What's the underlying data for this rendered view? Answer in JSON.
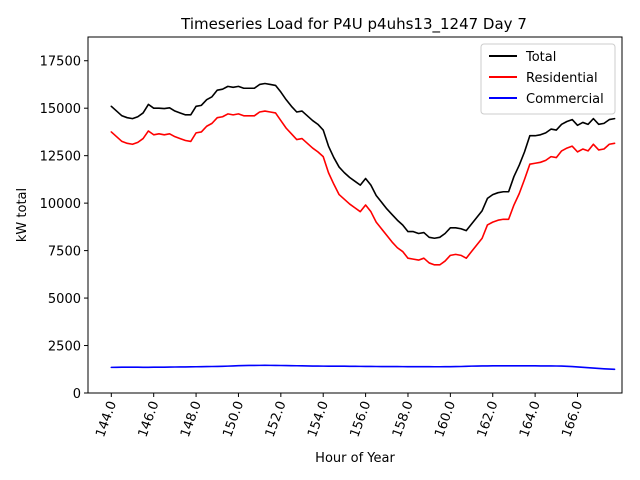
{
  "chart_data": {
    "type": "line",
    "title": "Timeseries Load for P4U p4uhs13_1247  Day 7",
    "xlabel": "Hour of Year",
    "ylabel": "kW total",
    "xlim": [
      142.9,
      168.1
    ],
    "ylim": [
      0,
      18750
    ],
    "xticks": [
      144,
      146,
      148,
      150,
      152,
      154,
      156,
      158,
      160,
      162,
      164,
      166
    ],
    "xtick_labels": [
      "144.0",
      "146.0",
      "148.0",
      "150.0",
      "152.0",
      "154.0",
      "156.0",
      "158.0",
      "160.0",
      "162.0",
      "164.0",
      "166.0"
    ],
    "yticks": [
      0,
      2500,
      5000,
      7500,
      10000,
      12500,
      15000,
      17500
    ],
    "ytick_labels": [
      "0",
      "2500",
      "5000",
      "7500",
      "10000",
      "12500",
      "15000",
      "17500"
    ],
    "legend_position": "top-right",
    "x": [
      144.0,
      144.25,
      144.5,
      144.75,
      145.0,
      145.25,
      145.5,
      145.75,
      146.0,
      146.25,
      146.5,
      146.75,
      147.0,
      147.25,
      147.5,
      147.75,
      148.0,
      148.25,
      148.5,
      148.75,
      149.0,
      149.25,
      149.5,
      149.75,
      150.0,
      150.25,
      150.5,
      150.75,
      151.0,
      151.25,
      151.5,
      151.75,
      152.0,
      152.25,
      152.5,
      152.75,
      153.0,
      153.25,
      153.5,
      153.75,
      154.0,
      154.25,
      154.5,
      154.75,
      155.0,
      155.25,
      155.5,
      155.75,
      156.0,
      156.25,
      156.5,
      156.75,
      157.0,
      157.25,
      157.5,
      157.75,
      158.0,
      158.25,
      158.5,
      158.75,
      159.0,
      159.25,
      159.5,
      159.75,
      160.0,
      160.25,
      160.5,
      160.75,
      161.0,
      161.25,
      161.5,
      161.75,
      162.0,
      162.25,
      162.5,
      162.75,
      163.0,
      163.25,
      163.5,
      163.75,
      164.0,
      164.25,
      164.5,
      164.75,
      165.0,
      165.25,
      165.5,
      165.75,
      166.0,
      166.25,
      166.5,
      166.75,
      167.0,
      167.25,
      167.5,
      167.75
    ],
    "series": [
      {
        "name": "Total",
        "color": "#000000",
        "values": [
          15100,
          14850,
          14600,
          14500,
          14450,
          14550,
          14750,
          15200,
          15000,
          15000,
          14980,
          15020,
          14850,
          14750,
          14650,
          14650,
          15100,
          15150,
          15450,
          15600,
          15950,
          16000,
          16150,
          16100,
          16150,
          16050,
          16050,
          16050,
          16250,
          16300,
          16250,
          16200,
          15850,
          15450,
          15100,
          14800,
          14850,
          14600,
          14350,
          14150,
          13850,
          13000,
          12400,
          11900,
          11600,
          11350,
          11150,
          10950,
          11300,
          10950,
          10400,
          10050,
          9700,
          9400,
          9100,
          8850,
          8500,
          8500,
          8400,
          8450,
          8200,
          8150,
          8200,
          8400,
          8700,
          8700,
          8650,
          8550,
          8900,
          9250,
          9600,
          10250,
          10450,
          10550,
          10600,
          10600,
          11400,
          12000,
          12700,
          13550,
          13550,
          13600,
          13700,
          13900,
          13850,
          14150,
          14300,
          14400,
          14100,
          14250,
          14150,
          14450,
          14150,
          14200,
          14400,
          14450
        ]
      },
      {
        "name": "Residential",
        "color": "#ff0000",
        "values": [
          13750,
          13500,
          13250,
          13150,
          13100,
          13200,
          13400,
          13800,
          13600,
          13650,
          13600,
          13650,
          13500,
          13400,
          13300,
          13250,
          13700,
          13750,
          14050,
          14200,
          14500,
          14550,
          14700,
          14650,
          14700,
          14600,
          14600,
          14600,
          14800,
          14850,
          14800,
          14750,
          14350,
          13950,
          13650,
          13350,
          13400,
          13150,
          12900,
          12700,
          12450,
          11600,
          11000,
          10450,
          10200,
          9950,
          9750,
          9550,
          9900,
          9550,
          9000,
          8650,
          8300,
          7950,
          7650,
          7450,
          7100,
          7050,
          7000,
          7100,
          6850,
          6750,
          6750,
          6950,
          7250,
          7300,
          7250,
          7100,
          7450,
          7800,
          8150,
          8850,
          9000,
          9100,
          9150,
          9150,
          9900,
          10500,
          11250,
          12050,
          12100,
          12150,
          12250,
          12450,
          12400,
          12750,
          12900,
          13000,
          12700,
          12850,
          12750,
          13100,
          12800,
          12850,
          13100,
          13150
        ]
      },
      {
        "name": "Commercial",
        "color": "#0000ff",
        "values": [
          1350,
          1355,
          1360,
          1362,
          1360,
          1358,
          1355,
          1355,
          1358,
          1360,
          1362,
          1365,
          1370,
          1372,
          1375,
          1378,
          1382,
          1386,
          1390,
          1395,
          1400,
          1405,
          1415,
          1425,
          1440,
          1445,
          1450,
          1452,
          1455,
          1456,
          1455,
          1452,
          1448,
          1445,
          1440,
          1435,
          1430,
          1425,
          1420,
          1418,
          1415,
          1414,
          1413,
          1412,
          1410,
          1408,
          1405,
          1402,
          1400,
          1398,
          1396,
          1394,
          1392,
          1390,
          1390,
          1389,
          1388,
          1387,
          1386,
          1385,
          1384,
          1383,
          1382,
          1384,
          1386,
          1390,
          1395,
          1405,
          1415,
          1420,
          1425,
          1428,
          1430,
          1430,
          1430,
          1432,
          1433,
          1433,
          1432,
          1431,
          1430,
          1428,
          1426,
          1424,
          1422,
          1418,
          1405,
          1390,
          1375,
          1355,
          1335,
          1315,
          1295,
          1275,
          1260,
          1250
        ]
      }
    ]
  }
}
